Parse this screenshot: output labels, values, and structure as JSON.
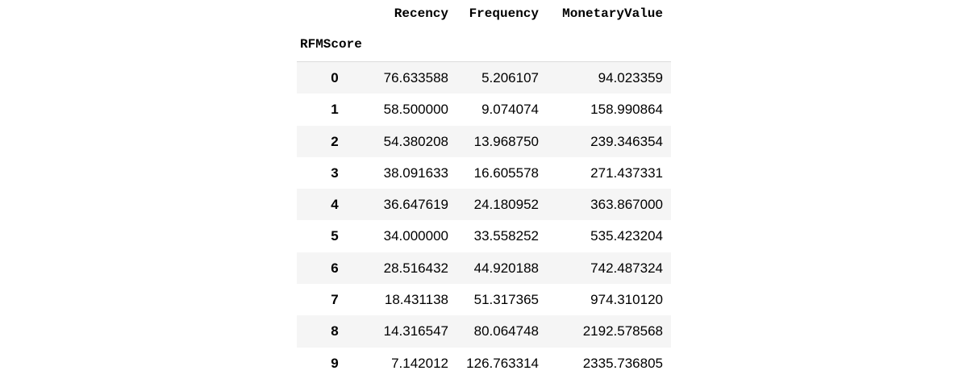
{
  "table": {
    "columns": [
      "Recency",
      "Frequency",
      "MonetaryValue"
    ],
    "index_name": "RFMScore",
    "rows": [
      {
        "index": "0",
        "recency": "76.633588",
        "frequency": "5.206107",
        "monetary": "94.023359"
      },
      {
        "index": "1",
        "recency": "58.500000",
        "frequency": "9.074074",
        "monetary": "158.990864"
      },
      {
        "index": "2",
        "recency": "54.380208",
        "frequency": "13.968750",
        "monetary": "239.346354"
      },
      {
        "index": "3",
        "recency": "38.091633",
        "frequency": "16.605578",
        "monetary": "271.437331"
      },
      {
        "index": "4",
        "recency": "36.647619",
        "frequency": "24.180952",
        "monetary": "363.867000"
      },
      {
        "index": "5",
        "recency": "34.000000",
        "frequency": "33.558252",
        "monetary": "535.423204"
      },
      {
        "index": "6",
        "recency": "28.516432",
        "frequency": "44.920188",
        "monetary": "742.487324"
      },
      {
        "index": "7",
        "recency": "18.431138",
        "frequency": "51.317365",
        "monetary": "974.310120"
      },
      {
        "index": "8",
        "recency": "14.316547",
        "frequency": "80.064748",
        "monetary": "2192.578568"
      },
      {
        "index": "9",
        "recency": "7.142012",
        "frequency": "126.763314",
        "monetary": "2335.736805"
      }
    ]
  }
}
